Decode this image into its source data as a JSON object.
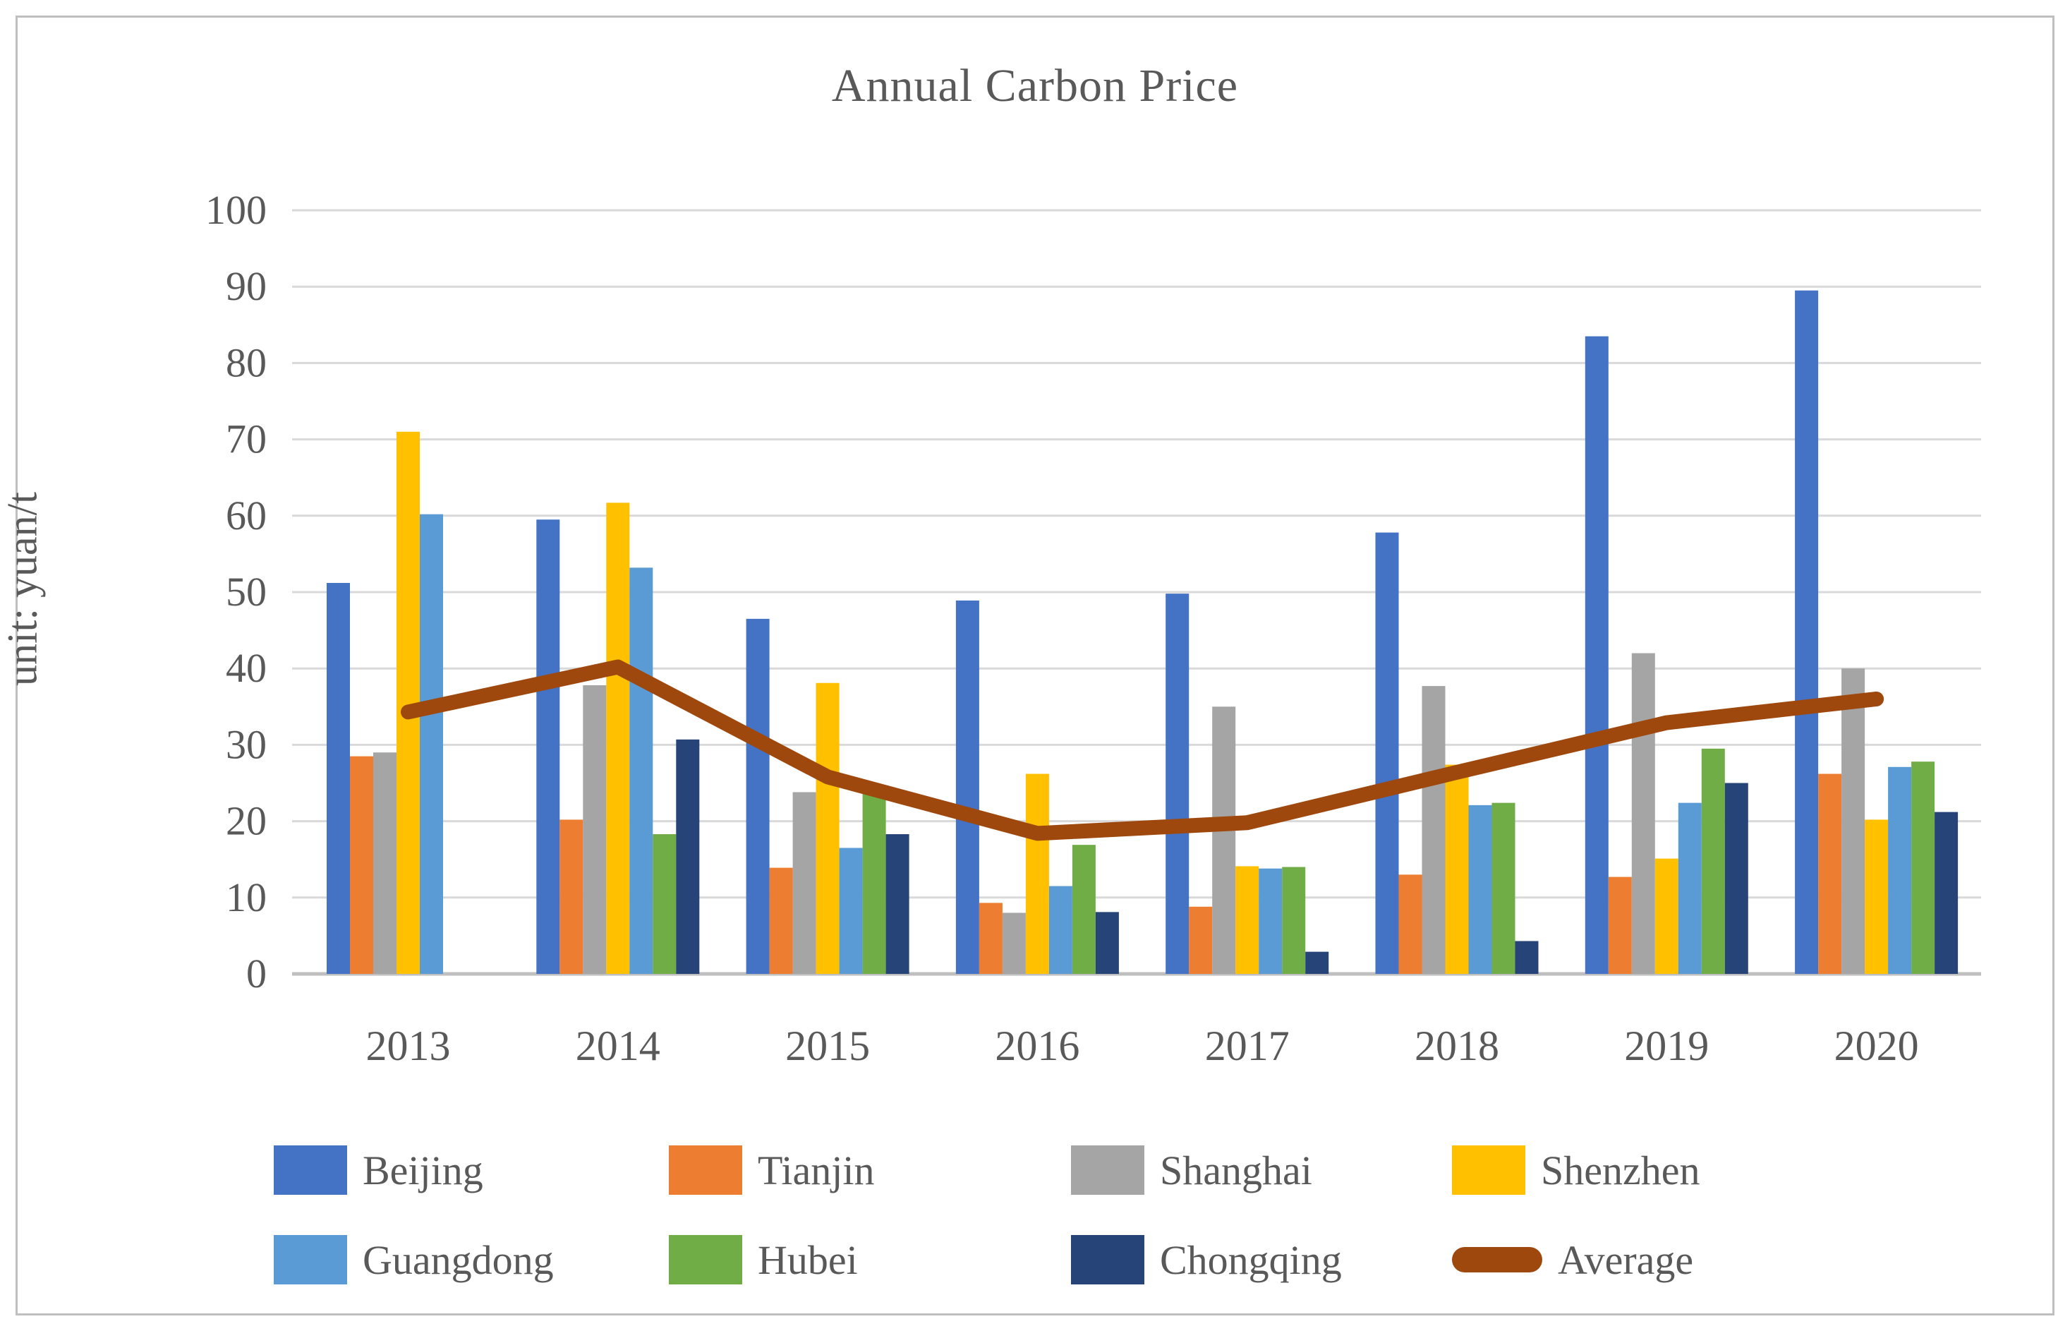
{
  "title": "Annual Carbon Price",
  "y_axis": {
    "title": "unit: yuan/t",
    "min": 0,
    "max": 100,
    "step": 10,
    "tick_labels": [
      "0",
      "10",
      "20",
      "30",
      "40",
      "50",
      "60",
      "70",
      "80",
      "90",
      "100"
    ]
  },
  "x_axis": {
    "categories": [
      "2013",
      "2014",
      "2015",
      "2016",
      "2017",
      "2018",
      "2019",
      "2020"
    ]
  },
  "chart_data": {
    "type": "bar",
    "subtype": "grouped bars with overlay line",
    "title": "Annual Carbon Price",
    "xlabel": "",
    "ylabel": "unit: yuan/t",
    "ylim": [
      0,
      100
    ],
    "grid": true,
    "legend_position": "bottom",
    "categories": [
      "2013",
      "2014",
      "2015",
      "2016",
      "2017",
      "2018",
      "2019",
      "2020"
    ],
    "series": [
      {
        "name": "Beijing",
        "type": "bar",
        "color": "#4472C4",
        "values": [
          51.2,
          59.5,
          46.5,
          48.9,
          49.8,
          57.8,
          83.5,
          89.5
        ]
      },
      {
        "name": "Tianjin",
        "type": "bar",
        "color": "#ED7D31",
        "values": [
          28.5,
          20.2,
          13.9,
          9.3,
          8.8,
          13.0,
          12.7,
          26.2
        ]
      },
      {
        "name": "Shanghai",
        "type": "bar",
        "color": "#A5A5A5",
        "values": [
          29.0,
          37.8,
          23.8,
          8.0,
          35.0,
          37.7,
          42.0,
          40.0
        ]
      },
      {
        "name": "Shenzhen",
        "type": "bar",
        "color": "#FFC000",
        "values": [
          71.0,
          61.7,
          38.1,
          26.2,
          14.1,
          27.4,
          15.1,
          20.2
        ]
      },
      {
        "name": "Guangdong",
        "type": "bar",
        "color": "#5B9BD5",
        "values": [
          60.2,
          53.2,
          16.5,
          11.5,
          13.8,
          22.1,
          22.4,
          27.1
        ]
      },
      {
        "name": "Hubei",
        "type": "bar",
        "color": "#70AD47",
        "values": [
          null,
          18.3,
          23.6,
          16.9,
          14.0,
          22.4,
          29.5,
          27.8
        ]
      },
      {
        "name": "Chongqing",
        "type": "bar",
        "color": "#264478",
        "values": [
          null,
          30.7,
          18.3,
          8.1,
          2.9,
          4.3,
          25.0,
          21.2
        ]
      },
      {
        "name": "Average",
        "type": "line",
        "color": "#9E480E",
        "values": [
          34.3,
          40.2,
          25.8,
          18.4,
          19.8,
          26.4,
          32.9,
          36.0
        ]
      }
    ]
  },
  "legend": {
    "rows": [
      [
        "Beijing",
        "Tianjin",
        "Shanghai",
        "Shenzhen"
      ],
      [
        "Guangdong",
        "Hubei",
        "Chongqing",
        "Average"
      ]
    ]
  },
  "style_colors": {
    "text": "#595959",
    "gridline": "#D9D9D9",
    "axis_line": "#BFBFBF",
    "frame": "#BFBFBF",
    "background": "#FFFFFF"
  }
}
